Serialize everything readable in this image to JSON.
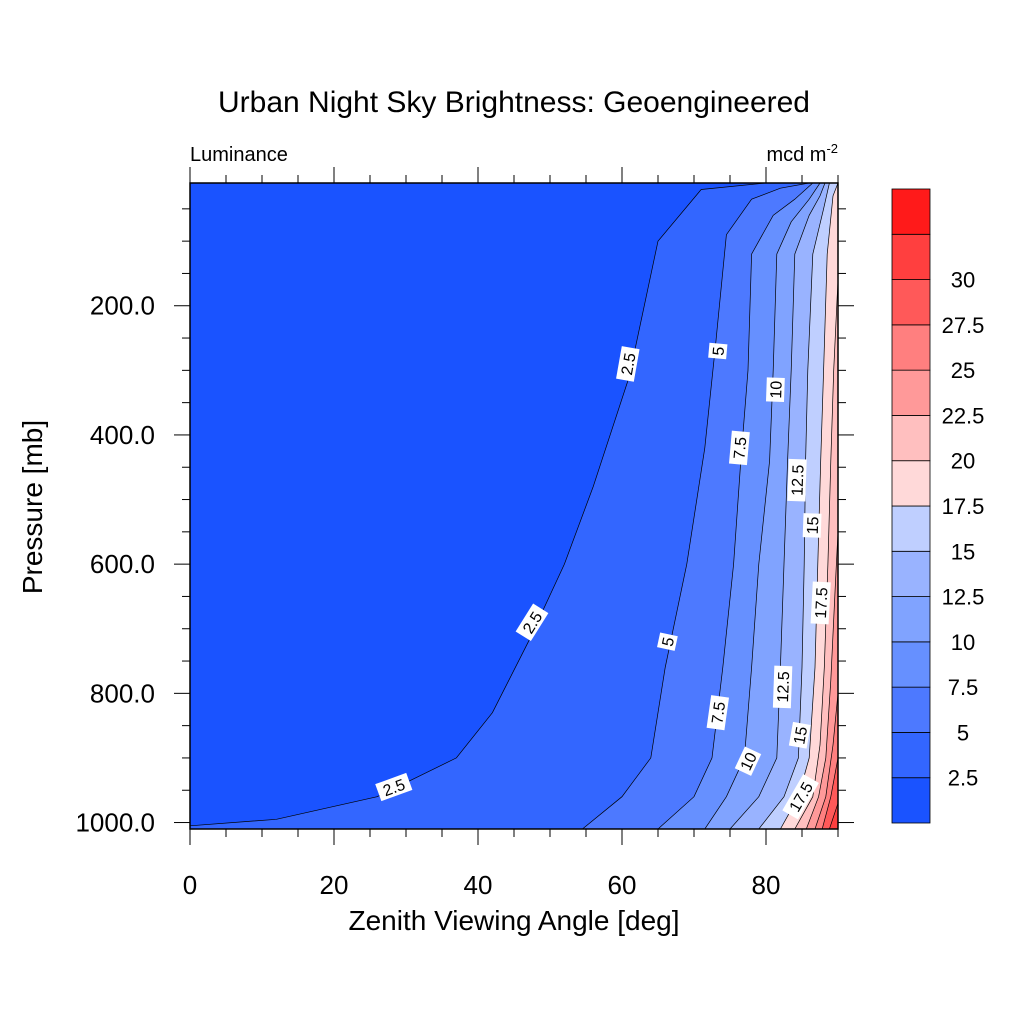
{
  "chart_data": {
    "type": "contour",
    "title": "Urban Night Sky Brightness: Geoengineered",
    "left_subtitle": "Luminance",
    "right_subtitle": "mcd m",
    "right_subtitle_sup": "-2",
    "xlabel": "Zenith Viewing Angle [deg]",
    "ylabel": "Pressure [mb]",
    "xlim": [
      0,
      90
    ],
    "ylim": [
      1010,
      10
    ],
    "y_scale": "linear",
    "y_reversed": true,
    "x_ticks": [
      0,
      20,
      40,
      60,
      80
    ],
    "x_tick_labels": [
      "0",
      "20",
      "40",
      "60",
      "80"
    ],
    "y_ticks": [
      200,
      400,
      600,
      800,
      1000
    ],
    "y_tick_labels": [
      "200.0",
      "400.0",
      "600.0",
      "800.0",
      "1000.0"
    ],
    "contour_levels": [
      2.5,
      5,
      7.5,
      10,
      12.5,
      15,
      17.5,
      20,
      22.5,
      25,
      27.5,
      30
    ],
    "level_colors": [
      "#1a53ff",
      "#3366ff",
      "#4d79ff",
      "#6690ff",
      "#80a3ff",
      "#99b3ff",
      "#bfcfff",
      "#ffd9d9",
      "#ffbfbf",
      "#ff9999",
      "#ff7f7f",
      "#ff5959",
      "#ff3f3f",
      "#ff1a1a"
    ],
    "colorbar_labels": [
      "2.5",
      "5",
      "7.5",
      "10",
      "12.5",
      "15",
      "17.5",
      "20",
      "22.5",
      "25",
      "27.5",
      "30"
    ],
    "contours": [
      {
        "level": 2.5,
        "points": [
          [
            0,
            1005
          ],
          [
            12,
            995
          ],
          [
            26,
            960
          ],
          [
            37,
            900
          ],
          [
            42,
            830
          ],
          [
            47,
            720
          ],
          [
            52,
            600
          ],
          [
            56,
            480
          ],
          [
            61,
            310
          ],
          [
            65,
            100
          ],
          [
            71,
            20
          ],
          [
            80,
            10
          ]
        ]
      },
      {
        "level": 5,
        "points": [
          [
            54.5,
            1010
          ],
          [
            60,
            960
          ],
          [
            64,
            900
          ],
          [
            66,
            760
          ],
          [
            69,
            600
          ],
          [
            71.5,
            420
          ],
          [
            73,
            260
          ],
          [
            74.5,
            90
          ],
          [
            78,
            35
          ],
          [
            82,
            18
          ],
          [
            86,
            10
          ]
        ]
      },
      {
        "level": 7.5,
        "points": [
          [
            65,
            1010
          ],
          [
            70,
            960
          ],
          [
            72.5,
            900
          ],
          [
            74,
            760
          ],
          [
            75.5,
            600
          ],
          [
            76.5,
            440
          ],
          [
            77.5,
            300
          ],
          [
            78,
            120
          ],
          [
            81,
            60
          ],
          [
            84,
            35
          ],
          [
            86.5,
            10
          ]
        ]
      },
      {
        "level": 10,
        "points": [
          [
            71.5,
            1010
          ],
          [
            74.5,
            960
          ],
          [
            77,
            900
          ],
          [
            78,
            760
          ],
          [
            79,
            600
          ],
          [
            80.5,
            440
          ],
          [
            81,
            300
          ],
          [
            81.5,
            120
          ],
          [
            83.5,
            70
          ],
          [
            86,
            35
          ],
          [
            87.5,
            10
          ]
        ]
      },
      {
        "level": 12.5,
        "points": [
          [
            75,
            1010
          ],
          [
            79,
            960
          ],
          [
            81.5,
            900
          ],
          [
            82,
            760
          ],
          [
            82.5,
            600
          ],
          [
            83,
            440
          ],
          [
            83.5,
            300
          ],
          [
            84,
            120
          ],
          [
            86,
            60
          ],
          [
            87.5,
            30
          ],
          [
            88.2,
            10
          ]
        ]
      },
      {
        "level": 15,
        "points": [
          [
            79,
            1010
          ],
          [
            82.5,
            960
          ],
          [
            84.5,
            900
          ],
          [
            85,
            760
          ],
          [
            85.3,
            600
          ],
          [
            85.5,
            440
          ],
          [
            85.8,
            300
          ],
          [
            86.5,
            120
          ],
          [
            88,
            50
          ],
          [
            88.8,
            10
          ]
        ]
      },
      {
        "level": 17.5,
        "points": [
          [
            82,
            1010
          ],
          [
            84.5,
            960
          ],
          [
            86,
            900
          ],
          [
            86.8,
            760
          ],
          [
            87.2,
            600
          ],
          [
            87.6,
            440
          ],
          [
            88,
            300
          ],
          [
            88.5,
            120
          ],
          [
            89.3,
            30
          ],
          [
            90,
            10
          ]
        ]
      },
      {
        "level": 20,
        "points": [
          [
            84,
            1010
          ],
          [
            86.5,
            960
          ],
          [
            87.5,
            880
          ],
          [
            88.1,
            760
          ],
          [
            88.6,
            600
          ],
          [
            89,
            440
          ],
          [
            89.4,
            300
          ],
          [
            90,
            160
          ]
        ]
      },
      {
        "level": 22.5,
        "points": [
          [
            85.6,
            1010
          ],
          [
            87.3,
            960
          ],
          [
            88.3,
            900
          ],
          [
            89,
            780
          ],
          [
            89.6,
            640
          ],
          [
            90,
            550
          ]
        ]
      },
      {
        "level": 25,
        "points": [
          [
            86.8,
            1010
          ],
          [
            88.3,
            960
          ],
          [
            89.3,
            880
          ],
          [
            90,
            800
          ]
        ]
      },
      {
        "level": 27.5,
        "points": [
          [
            87.8,
            1010
          ],
          [
            89,
            960
          ],
          [
            90,
            900
          ]
        ]
      },
      {
        "level": 30,
        "points": [
          [
            88.8,
            1010
          ],
          [
            90,
            970
          ]
        ]
      }
    ],
    "contour_labels": [
      {
        "text": "2.5",
        "x": 60.8,
        "y": 290,
        "angle": -80
      },
      {
        "text": "2.5",
        "x": 47.5,
        "y": 690,
        "angle": -58
      },
      {
        "text": "2.5",
        "x": 28.3,
        "y": 945,
        "angle": -20
      },
      {
        "text": "5",
        "x": 73.3,
        "y": 270,
        "angle": -85
      },
      {
        "text": "5",
        "x": 66.3,
        "y": 720,
        "angle": -78
      },
      {
        "text": "7.5",
        "x": 76.3,
        "y": 420,
        "angle": -85
      },
      {
        "text": "7.5",
        "x": 73.3,
        "y": 830,
        "angle": -82
      },
      {
        "text": "10",
        "x": 81.3,
        "y": 330,
        "angle": -88
      },
      {
        "text": "10",
        "x": 77.5,
        "y": 905,
        "angle": -65
      },
      {
        "text": "12.5",
        "x": 84.3,
        "y": 470,
        "angle": -88
      },
      {
        "text": "12.5",
        "x": 82.3,
        "y": 790,
        "angle": -88
      },
      {
        "text": "15",
        "x": 86.4,
        "y": 540,
        "angle": -88
      },
      {
        "text": "15",
        "x": 84.7,
        "y": 865,
        "angle": -80
      },
      {
        "text": "17.5",
        "x": 87.6,
        "y": 660,
        "angle": -87
      },
      {
        "text": "17.5",
        "x": 84.8,
        "y": 960,
        "angle": -60
      }
    ]
  }
}
